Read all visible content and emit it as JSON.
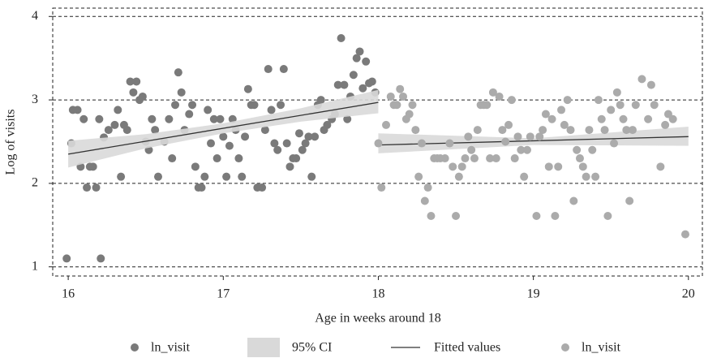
{
  "chart_data": {
    "type": "scatter",
    "x_label": "Age in weeks around 18",
    "y_label": "Log of visits",
    "xlim": [
      15.9,
      20.09
    ],
    "ylim": [
      0.89,
      4.1
    ],
    "xticks": [
      16,
      17,
      18,
      19,
      20
    ],
    "yticks": [
      1,
      2,
      3,
      4
    ],
    "grid": true,
    "legend": "bottom",
    "series": [
      {
        "name": "ln_visit",
        "type": "scatter",
        "color": "#7a7a7a",
        "x": [
          15.99,
          16.02,
          16.03,
          16.06,
          16.08,
          16.1,
          16.12,
          16.14,
          16.16,
          16.18,
          16.2,
          16.21,
          16.23,
          16.26,
          16.3,
          16.32,
          16.34,
          16.36,
          16.38,
          16.4,
          16.42,
          16.44,
          16.46,
          16.48,
          16.5,
          16.52,
          16.54,
          16.56,
          16.58,
          16.62,
          16.65,
          16.67,
          16.69,
          16.71,
          16.73,
          16.75,
          16.78,
          16.8,
          16.82,
          16.84,
          16.86,
          16.88,
          16.9,
          16.92,
          16.94,
          16.96,
          16.98,
          17.0,
          17.02,
          17.04,
          17.06,
          17.08,
          17.1,
          17.12,
          17.14,
          17.16,
          17.18,
          17.2,
          17.22,
          17.25,
          17.27,
          17.29,
          17.31,
          17.33,
          17.35,
          17.37,
          17.39,
          17.41,
          17.43,
          17.45,
          17.47,
          17.49,
          17.51,
          17.53,
          17.55,
          17.57,
          17.59,
          17.61,
          17.63,
          17.65,
          17.67,
          17.7,
          17.72,
          17.74,
          17.76,
          17.78,
          17.8,
          17.82,
          17.84,
          17.86,
          17.88,
          17.9,
          17.92,
          17.94,
          17.96,
          17.98
        ],
        "values": [
          1.1,
          2.48,
          2.88,
          2.88,
          2.2,
          2.77,
          1.95,
          2.2,
          2.2,
          1.95,
          2.77,
          1.1,
          2.55,
          2.64,
          2.7,
          2.88,
          2.08,
          2.7,
          2.64,
          3.22,
          3.09,
          3.22,
          3.0,
          3.04,
          2.5,
          2.4,
          2.77,
          2.64,
          2.08,
          2.5,
          2.77,
          2.3,
          2.94,
          3.33,
          3.09,
          2.64,
          2.83,
          2.94,
          2.2,
          1.95,
          1.95,
          2.08,
          2.88,
          2.48,
          2.77,
          2.3,
          2.77,
          2.56,
          2.08,
          2.45,
          2.77,
          2.64,
          2.3,
          2.08,
          2.56,
          3.13,
          2.94,
          2.94,
          1.95,
          1.95,
          2.64,
          3.37,
          2.88,
          2.48,
          2.4,
          2.94,
          3.37,
          2.48,
          2.2,
          2.3,
          2.3,
          2.6,
          2.4,
          2.48,
          2.56,
          2.08,
          2.56,
          2.94,
          3.0,
          2.64,
          2.7,
          2.77,
          2.83,
          3.18,
          3.74,
          3.18,
          2.77,
          3.04,
          3.3,
          3.5,
          3.58,
          3.14,
          3.46,
          3.2,
          3.22,
          3.09
        ]
      },
      {
        "name": "95% CI",
        "type": "band",
        "color": "#d9d9d9",
        "x": [
          16,
          16.5,
          17,
          17.5,
          18,
          null,
          18,
          19,
          20
        ],
        "lower": [
          2.19,
          2.42,
          2.6,
          2.74,
          2.84,
          null,
          2.36,
          2.46,
          2.45
        ],
        "upper": [
          2.51,
          2.59,
          2.72,
          2.9,
          3.12,
          null,
          2.6,
          2.54,
          2.68
        ]
      },
      {
        "name": "Fitted values",
        "type": "line",
        "color": "#333333",
        "x": [
          16,
          18,
          null,
          18,
          20
        ],
        "values": [
          2.35,
          2.97,
          null,
          2.46,
          2.56
        ]
      },
      {
        "name": "ln_visit",
        "type": "scatter",
        "color": "#ababab",
        "x": [
          18.0,
          18.02,
          18.05,
          18.08,
          18.1,
          18.12,
          18.14,
          18.16,
          18.18,
          18.2,
          18.22,
          18.24,
          18.26,
          18.28,
          18.3,
          18.32,
          18.34,
          18.36,
          18.38,
          18.4,
          18.43,
          18.46,
          18.48,
          18.5,
          18.52,
          18.54,
          18.56,
          18.58,
          18.6,
          18.62,
          18.64,
          18.66,
          18.68,
          18.7,
          18.72,
          18.74,
          18.76,
          18.78,
          18.8,
          18.82,
          18.84,
          18.86,
          18.88,
          18.9,
          18.92,
          18.94,
          18.96,
          18.98,
          19.02,
          19.04,
          19.06,
          19.08,
          19.1,
          19.12,
          19.14,
          19.16,
          19.18,
          19.2,
          19.22,
          19.24,
          19.26,
          19.28,
          19.3,
          19.32,
          19.34,
          19.36,
          19.38,
          19.4,
          19.42,
          19.44,
          19.46,
          19.48,
          19.5,
          19.52,
          19.54,
          19.56,
          19.58,
          19.6,
          19.62,
          19.64,
          19.66,
          19.7,
          19.74,
          19.76,
          19.78,
          19.82,
          19.85,
          19.87,
          19.9,
          19.98
        ],
        "values": [
          2.48,
          1.95,
          2.7,
          3.04,
          2.94,
          2.94,
          3.13,
          3.04,
          2.77,
          2.83,
          2.94,
          2.64,
          2.08,
          2.48,
          1.79,
          1.95,
          1.61,
          2.3,
          2.3,
          2.3,
          2.3,
          2.48,
          2.2,
          1.61,
          2.08,
          2.2,
          2.3,
          2.56,
          2.4,
          2.3,
          2.64,
          2.94,
          2.94,
          2.94,
          2.3,
          3.09,
          2.3,
          3.04,
          2.64,
          2.5,
          2.7,
          3.0,
          2.3,
          2.56,
          2.4,
          2.08,
          2.4,
          2.56,
          1.61,
          2.56,
          2.64,
          2.83,
          2.2,
          2.77,
          1.61,
          2.2,
          2.88,
          2.7,
          3.0,
          2.64,
          1.79,
          2.4,
          2.3,
          2.2,
          2.08,
          2.64,
          2.4,
          2.08,
          3.0,
          2.77,
          2.64,
          1.61,
          2.88,
          2.48,
          3.09,
          2.94,
          2.77,
          2.64,
          1.79,
          2.64,
          2.94,
          3.25,
          2.77,
          3.18,
          2.94,
          2.2,
          2.7,
          2.83,
          2.77,
          1.39
        ]
      }
    ]
  }
}
